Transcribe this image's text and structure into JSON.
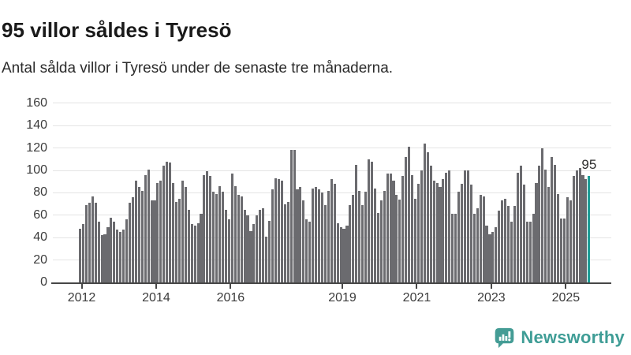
{
  "header": {
    "title": "95 villor såldes i Tyresö",
    "subtitle": "Antal sålda villor i Tyresö under de senaste tre månaderna."
  },
  "chart_data": {
    "type": "bar",
    "title": "95 villor såldes i Tyresö",
    "subtitle": "Antal sålda villor i Tyresö under de senaste tre månaderna.",
    "xlabel": "",
    "ylabel": "",
    "grid": true,
    "legend": false,
    "frequency": "monthly",
    "start_month": "2012-01",
    "end_month": "2025-09",
    "ylim": [
      0,
      165
    ],
    "y_ticks": [
      0,
      20,
      40,
      60,
      80,
      100,
      120,
      140,
      160
    ],
    "x_ticks": [
      {
        "label": "2012",
        "month_index": 0
      },
      {
        "label": "2014",
        "month_index": 24
      },
      {
        "label": "2016",
        "month_index": 48
      },
      {
        "label": "2019",
        "month_index": 84
      },
      {
        "label": "2021",
        "month_index": 108
      },
      {
        "label": "2023",
        "month_index": 132
      },
      {
        "label": "2025",
        "month_index": 156
      }
    ],
    "values": [
      48,
      52,
      69,
      71,
      77,
      71,
      54,
      42,
      43,
      49,
      58,
      54,
      47,
      45,
      47,
      56,
      71,
      76,
      91,
      85,
      82,
      96,
      101,
      73,
      73,
      89,
      91,
      104,
      108,
      107,
      89,
      72,
      75,
      91,
      85,
      65,
      52,
      51,
      53,
      61,
      96,
      99,
      95,
      81,
      79,
      86,
      81,
      65,
      56,
      97,
      86,
      78,
      77,
      65,
      60,
      46,
      52,
      60,
      65,
      66,
      41,
      55,
      83,
      93,
      92,
      91,
      70,
      72,
      118,
      118,
      83,
      85,
      73,
      56,
      54,
      84,
      85,
      83,
      80,
      69,
      82,
      92,
      88,
      53,
      49,
      48,
      51,
      69,
      78,
      105,
      82,
      69,
      81,
      110,
      108,
      84,
      62,
      73,
      82,
      97,
      97,
      91,
      78,
      74,
      95,
      112,
      121,
      96,
      75,
      88,
      100,
      124,
      116,
      104,
      91,
      89,
      85,
      92,
      98,
      100,
      61,
      61,
      81,
      88,
      100,
      100,
      87,
      61,
      66,
      78,
      77,
      51,
      43,
      45,
      49,
      64,
      73,
      75,
      68,
      54,
      68,
      98,
      104,
      87,
      54,
      54,
      61,
      89,
      104,
      120,
      101,
      85,
      112,
      105,
      79,
      57,
      57,
      76,
      73,
      95,
      100,
      102,
      96,
      92,
      95
    ],
    "highlight": {
      "index": 164,
      "value": 95,
      "label": "95"
    },
    "bar_color": "#6b6b6f",
    "highlight_color": "#1d9c96"
  },
  "footer": {
    "brand": "Newsworthy"
  },
  "colors": {
    "background": "#ffffff",
    "title_text": "#1a1a1a",
    "axis_text": "#3c3c3c",
    "gridline": "#e4e4e4",
    "axis_line": "#474747",
    "bar_gray": "#6b6b6f",
    "accent_teal": "#1d9c96",
    "logo_teal": "#3f9d96"
  }
}
